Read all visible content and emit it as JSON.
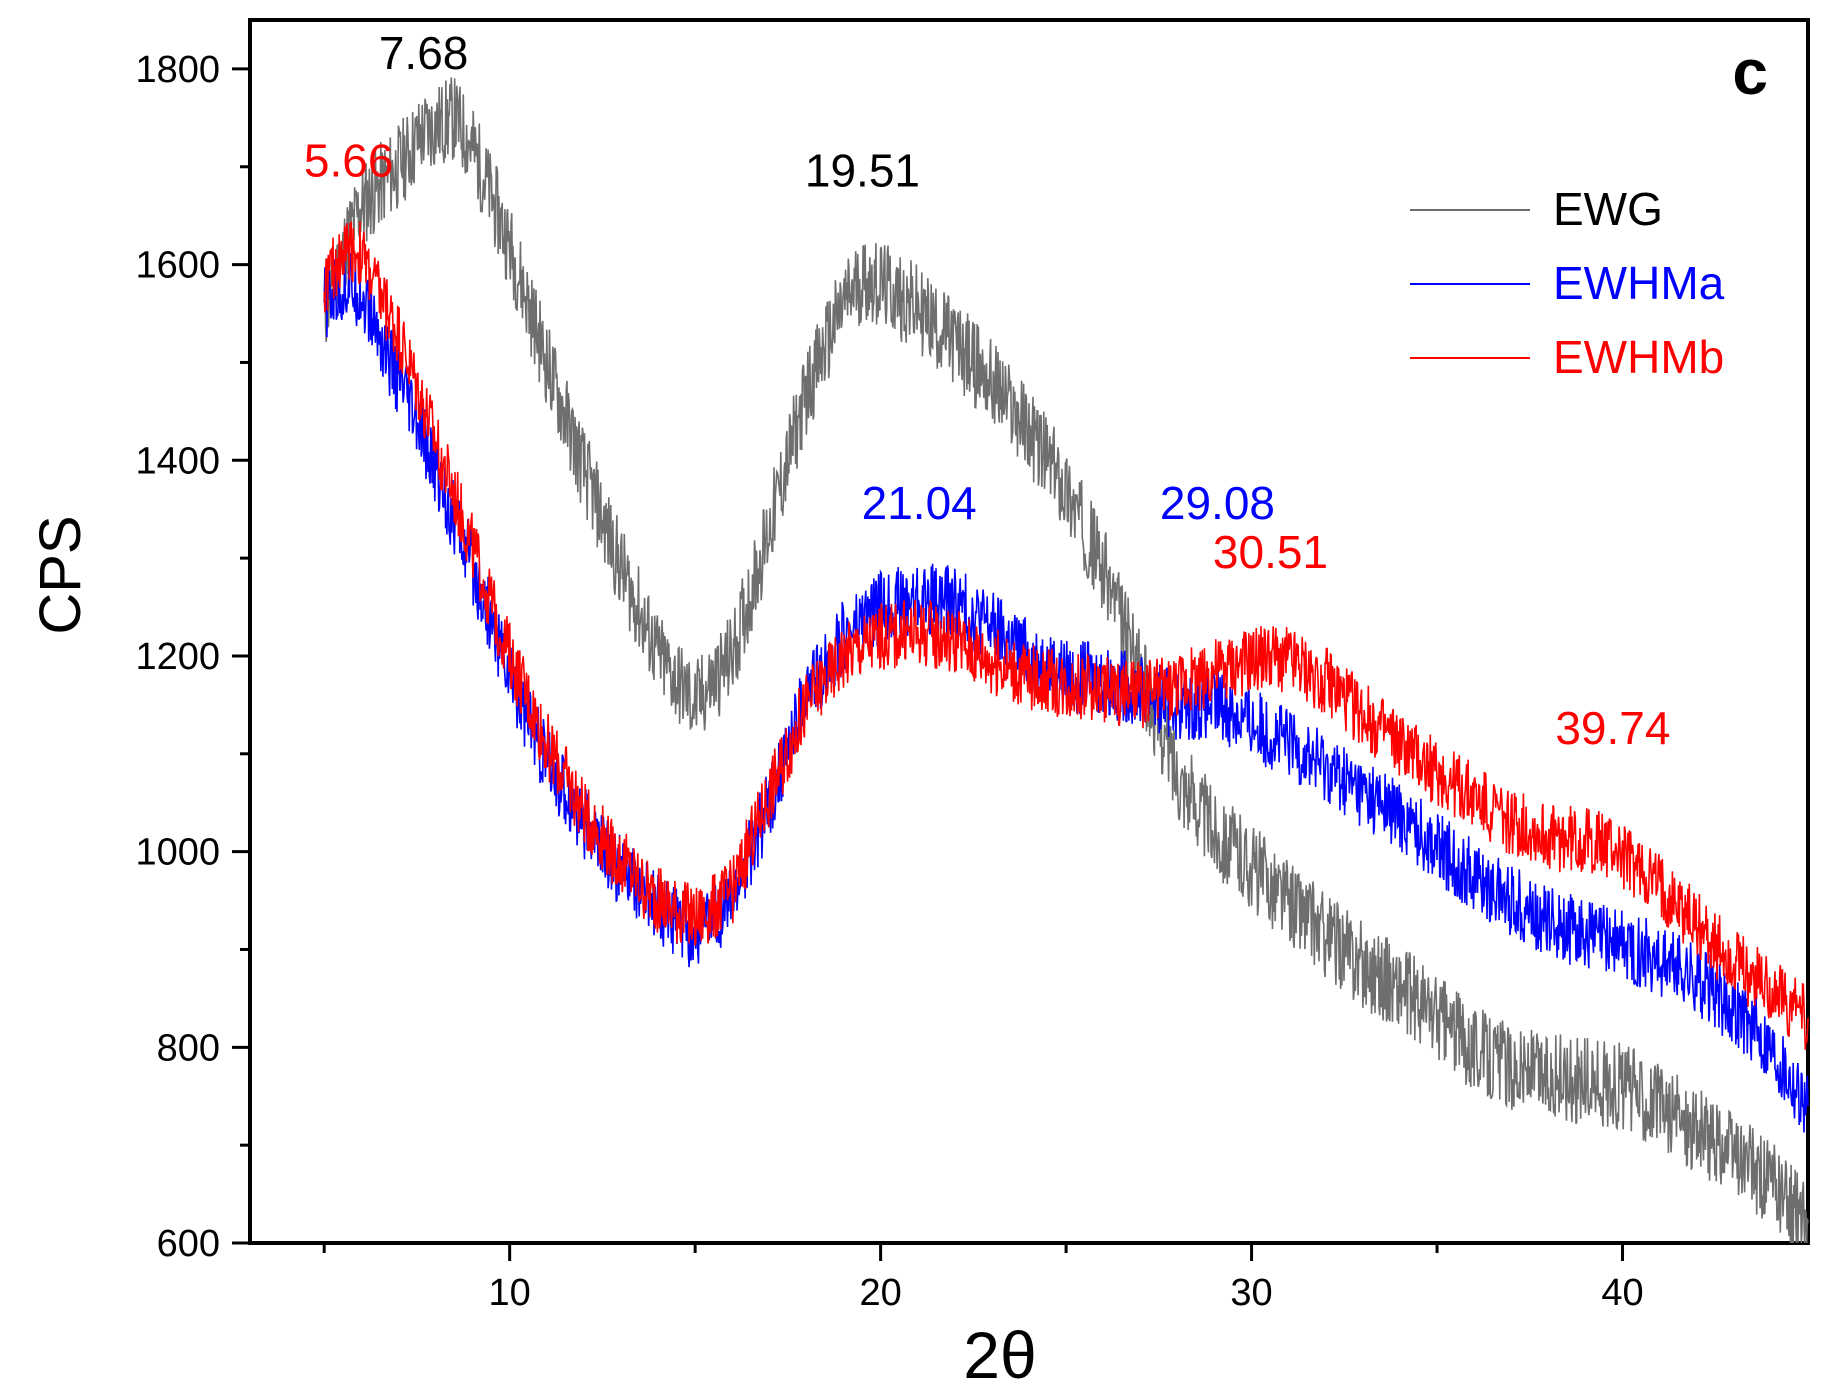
{
  "chart_data": {
    "type": "line",
    "panel_label": "c",
    "xlabel": "2θ",
    "ylabel": "CPS",
    "xlim": [
      3,
      45
    ],
    "ylim": [
      600,
      1850
    ],
    "xticks": [
      10,
      20,
      30,
      40
    ],
    "xtick_labels": [
      "10",
      "20",
      "30",
      "40"
    ],
    "yticks": [
      600,
      800,
      1000,
      1200,
      1400,
      1600,
      1800
    ],
    "ytick_labels": [
      "600",
      "800",
      "1000",
      "1200",
      "1400",
      "1600",
      "1800"
    ],
    "grid": false,
    "legend_position": "top-right",
    "series": [
      {
        "name": "EWG",
        "color": "#6e6e6e",
        "noise": 90,
        "x": [
          5,
          5.66,
          6,
          7,
          7.68,
          8.5,
          9,
          10,
          11,
          12,
          13,
          14,
          15,
          16,
          17,
          18,
          19,
          19.51,
          20,
          21,
          22,
          23,
          24,
          25,
          26,
          27,
          28,
          29,
          30,
          31,
          32,
          33,
          34,
          35,
          36,
          37,
          38,
          39,
          40,
          41,
          42,
          43,
          44,
          45
        ],
        "y": [
          1550,
          1630,
          1660,
          1700,
          1735,
          1750,
          1720,
          1620,
          1500,
          1390,
          1290,
          1200,
          1150,
          1200,
          1330,
          1470,
          1560,
          1585,
          1580,
          1555,
          1520,
          1480,
          1430,
          1370,
          1290,
          1180,
          1080,
          1020,
          985,
          950,
          915,
          885,
          860,
          830,
          800,
          780,
          770,
          765,
          760,
          740,
          715,
          690,
          660,
          620
        ]
      },
      {
        "name": "EWHMa",
        "color": "#0000ff",
        "noise": 75,
        "x": [
          5,
          5.66,
          6,
          7,
          8,
          9,
          10,
          11,
          12,
          13,
          14,
          15,
          16,
          17,
          18,
          19,
          20,
          21.04,
          22,
          23,
          24,
          25,
          26,
          27,
          28,
          29.08,
          30,
          31,
          32,
          33,
          34,
          35,
          36,
          37,
          38,
          39,
          40,
          41,
          42,
          43,
          44,
          45
        ],
        "y": [
          1560,
          1580,
          1570,
          1480,
          1390,
          1290,
          1180,
          1090,
          1030,
          980,
          940,
          915,
          950,
          1050,
          1160,
          1220,
          1250,
          1260,
          1255,
          1230,
          1200,
          1180,
          1175,
          1165,
          1150,
          1150,
          1130,
          1110,
          1085,
          1060,
          1035,
          1005,
          975,
          950,
          930,
          915,
          905,
          890,
          870,
          840,
          800,
          740
        ]
      },
      {
        "name": "EWHMb",
        "color": "#ff0000",
        "noise": 70,
        "x": [
          5,
          5.66,
          6,
          7,
          8,
          9,
          10,
          11,
          12,
          13,
          14,
          15,
          16,
          17,
          18,
          19,
          20,
          21,
          22,
          23,
          24,
          25,
          26,
          27,
          28,
          29,
          30,
          30.51,
          31,
          32,
          33,
          34,
          35,
          36,
          37,
          38,
          39,
          39.74,
          40,
          41,
          42,
          43,
          44,
          45
        ],
        "y": [
          1580,
          1620,
          1610,
          1530,
          1420,
          1310,
          1200,
          1110,
          1040,
          990,
          950,
          930,
          960,
          1060,
          1150,
          1200,
          1220,
          1225,
          1215,
          1195,
          1180,
          1170,
          1165,
          1160,
          1170,
          1185,
          1195,
          1200,
          1195,
          1175,
          1140,
          1110,
          1080,
          1055,
          1030,
          1015,
          1010,
          1005,
          995,
          965,
          925,
          885,
          860,
          830
        ]
      }
    ],
    "annotations": [
      {
        "text": "7.68",
        "x": 7.68,
        "y": 1800,
        "color": "#000000"
      },
      {
        "text": "5.66",
        "x": 5.66,
        "y": 1690,
        "color": "#ff0000"
      },
      {
        "text": "19.51",
        "x": 19.51,
        "y": 1680,
        "color": "#000000"
      },
      {
        "text": "21.04",
        "x": 21.04,
        "y": 1340,
        "color": "#0000ff"
      },
      {
        "text": "29.08",
        "x": 29.08,
        "y": 1340,
        "color": "#0000ff"
      },
      {
        "text": "30.51",
        "x": 30.51,
        "y": 1290,
        "color": "#ff0000"
      },
      {
        "text": "39.74",
        "x": 39.74,
        "y": 1110,
        "color": "#ff0000"
      }
    ]
  }
}
